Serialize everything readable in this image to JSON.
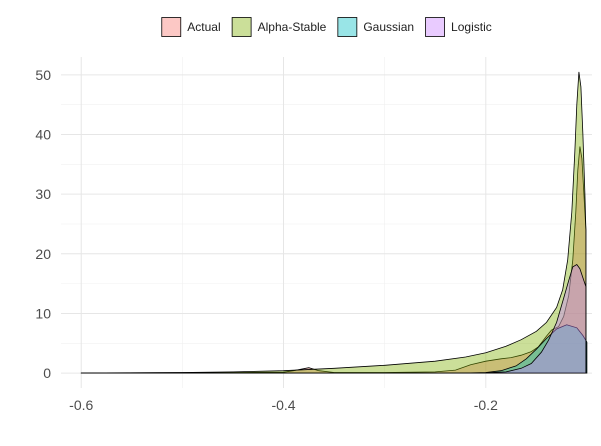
{
  "chart_data": {
    "type": "area",
    "title": "",
    "xlabel": "",
    "ylabel": "",
    "xlim": [
      -0.62,
      -0.095
    ],
    "ylim": [
      -2.5,
      53
    ],
    "xticks": [
      -0.6,
      -0.4,
      -0.2
    ],
    "xtick_labels": [
      "-0.6",
      "-0.4",
      "-0.2"
    ],
    "yticks": [
      0,
      10,
      20,
      30,
      40,
      50
    ],
    "ytick_labels": [
      "0",
      "10",
      "20",
      "30",
      "40",
      "50"
    ],
    "grid": true,
    "legend_position": "top",
    "series": [
      {
        "name": "Actual",
        "color": "#F8766D",
        "points": [
          [
            -0.6,
            0
          ],
          [
            -0.45,
            0.1
          ],
          [
            -0.4,
            0.15
          ],
          [
            -0.39,
            0.4
          ],
          [
            -0.375,
            0.9
          ],
          [
            -0.365,
            0.4
          ],
          [
            -0.35,
            0.1
          ],
          [
            -0.3,
            0.1
          ],
          [
            -0.25,
            0.2
          ],
          [
            -0.23,
            0.5
          ],
          [
            -0.215,
            1.4
          ],
          [
            -0.2,
            2.0
          ],
          [
            -0.185,
            2.4
          ],
          [
            -0.175,
            2.6
          ],
          [
            -0.165,
            3.0
          ],
          [
            -0.155,
            3.6
          ],
          [
            -0.148,
            4.4
          ],
          [
            -0.14,
            6.2
          ],
          [
            -0.135,
            7.2
          ],
          [
            -0.128,
            7.8
          ],
          [
            -0.123,
            9.5
          ],
          [
            -0.118,
            13.0
          ],
          [
            -0.114,
            19.0
          ],
          [
            -0.111,
            27.0
          ],
          [
            -0.109,
            34.0
          ],
          [
            -0.107,
            38.0
          ],
          [
            -0.105,
            36.0
          ],
          [
            -0.103,
            30.0
          ],
          [
            -0.101,
            24.0
          ]
        ]
      },
      {
        "name": "Alpha-Stable",
        "color": "#7CAE00",
        "points": [
          [
            -0.6,
            0.02
          ],
          [
            -0.55,
            0.05
          ],
          [
            -0.5,
            0.1
          ],
          [
            -0.45,
            0.2
          ],
          [
            -0.4,
            0.4
          ],
          [
            -0.35,
            0.8
          ],
          [
            -0.3,
            1.3
          ],
          [
            -0.25,
            2.0
          ],
          [
            -0.22,
            2.7
          ],
          [
            -0.2,
            3.4
          ],
          [
            -0.18,
            4.5
          ],
          [
            -0.165,
            5.6
          ],
          [
            -0.15,
            7.0
          ],
          [
            -0.14,
            8.5
          ],
          [
            -0.13,
            11.0
          ],
          [
            -0.124,
            14.0
          ],
          [
            -0.119,
            19.0
          ],
          [
            -0.115,
            27.0
          ],
          [
            -0.112,
            37.0
          ],
          [
            -0.11,
            45.0
          ],
          [
            -0.108,
            50.5
          ],
          [
            -0.106,
            48.0
          ],
          [
            -0.104,
            40.0
          ],
          [
            -0.102,
            30.0
          ],
          [
            -0.101,
            24.0
          ]
        ]
      },
      {
        "name": "Gaussian",
        "color": "#00BFC4",
        "points": [
          [
            -0.6,
            0
          ],
          [
            -0.3,
            0
          ],
          [
            -0.22,
            0.02
          ],
          [
            -0.2,
            0.1
          ],
          [
            -0.185,
            0.4
          ],
          [
            -0.17,
            1.2
          ],
          [
            -0.16,
            2.4
          ],
          [
            -0.15,
            4.0
          ],
          [
            -0.14,
            5.8
          ],
          [
            -0.13,
            7.4
          ],
          [
            -0.12,
            8.1
          ],
          [
            -0.11,
            7.6
          ],
          [
            -0.104,
            6.3
          ],
          [
            -0.1,
            5.2
          ]
        ]
      },
      {
        "name": "Logistic",
        "color": "#C77CFF",
        "points": [
          [
            -0.6,
            0
          ],
          [
            -0.25,
            0
          ],
          [
            -0.2,
            0.05
          ],
          [
            -0.18,
            0.2
          ],
          [
            -0.165,
            0.8
          ],
          [
            -0.155,
            1.6
          ],
          [
            -0.145,
            3.5
          ],
          [
            -0.138,
            5.5
          ],
          [
            -0.13,
            8.5
          ],
          [
            -0.124,
            12.0
          ],
          [
            -0.118,
            15.5
          ],
          [
            -0.114,
            17.8
          ],
          [
            -0.11,
            18.2
          ],
          [
            -0.107,
            17.5
          ],
          [
            -0.104,
            16.0
          ],
          [
            -0.101,
            14.5
          ]
        ]
      }
    ]
  }
}
